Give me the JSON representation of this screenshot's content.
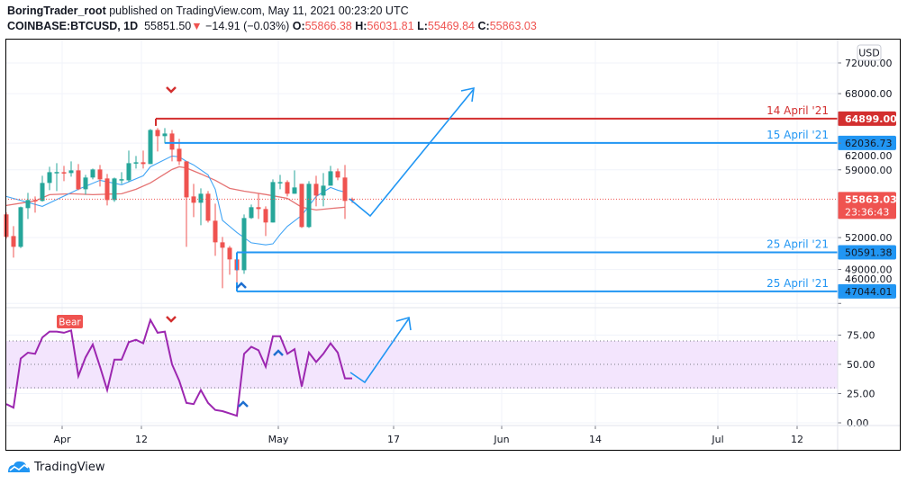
{
  "header": {
    "author": "BoringTrader_root",
    "published_text": "published on TradingView.com, May 11, 2021 00:23:20 UTC",
    "symbol": "COINBASE:BTCUSD, 1D",
    "last": "55851.50",
    "change": "−14.91 (−0.03%)",
    "o_label": "O:",
    "o": "55866.38",
    "h_label": "H:",
    "h": "56031.81",
    "l_label": "L:",
    "l": "55469.84",
    "c_label": "C:",
    "c": "55863.03"
  },
  "footer": {
    "brand": "TradingView"
  },
  "colors": {
    "up": "#26a69a",
    "down": "#ef5350",
    "blue": "#2196f3",
    "red_line": "#d32f2f",
    "rsi": "#9c27b0",
    "rsi_band": "#f3e5fd",
    "ma_fast": "#42a5f5",
    "ma_slow": "#e57373"
  },
  "chart_data": {
    "type": "candlestick",
    "currency": "USD",
    "scale": "log",
    "price_ticks": [
      "72000.00",
      "68000.00",
      "62000.00",
      "59000.00",
      "52000.00",
      "49000.00",
      "46000.00"
    ],
    "price_tick_values": [
      72000,
      68000,
      62000,
      59000,
      52000,
      49000,
      46000
    ],
    "time_labels": [
      "Apr",
      "12",
      "May",
      "17",
      "Jun",
      "14",
      "Jul",
      "12"
    ],
    "candles_ohlc": [
      [
        54300,
        54500,
        51900,
        52070
      ],
      [
        52150,
        53120,
        50095,
        51115
      ],
      [
        51115,
        55100,
        51000,
        55030
      ],
      [
        54935,
        56525,
        53840,
        55770
      ],
      [
        55770,
        56145,
        54480,
        55680
      ],
      [
        55680,
        58350,
        55600,
        57575
      ],
      [
        57575,
        59340,
        56805,
        58740
      ],
      [
        58740,
        59735,
        56715,
        58760
      ],
      [
        58740,
        59440,
        57765,
        58645
      ],
      [
        58645,
        59935,
        58255,
        58940
      ],
      [
        58940,
        59640,
        56805,
        56900
      ],
      [
        56900,
        58450,
        56335,
        58160
      ],
      [
        58160,
        59140,
        57960,
        59040
      ],
      [
        59040,
        59540,
        57190,
        57960
      ],
      [
        58060,
        58550,
        55215,
        55770
      ],
      [
        55770,
        58160,
        55585,
        58060
      ],
      [
        57960,
        58740,
        57480,
        57980
      ],
      [
        57860,
        61160,
        57670,
        59735
      ],
      [
        59735,
        60540,
        59140,
        59835
      ],
      [
        59835,
        61160,
        59140,
        59640
      ],
      [
        59640,
        63660,
        59640,
        63550
      ],
      [
        63550,
        63770,
        61050,
        62820
      ],
      [
        62820,
        63770,
        61980,
        63130
      ],
      [
        63130,
        63550,
        59935,
        61260
      ],
      [
        61360,
        62500,
        59540,
        59935
      ],
      [
        59935,
        59935,
        51115,
        56050
      ],
      [
        56145,
        57480,
        54020,
        55490
      ],
      [
        55490,
        57000,
        53210,
        56430
      ],
      [
        56430,
        56715,
        53485,
        53660
      ],
      [
        53660,
        55400,
        50265,
        51545
      ],
      [
        51545,
        52065,
        47320,
        51030
      ],
      [
        51030,
        51200,
        48530,
        49930
      ],
      [
        49930,
        49930,
        47640,
        48935
      ],
      [
        48935,
        54295,
        48610,
        53930
      ],
      [
        53930,
        55305,
        53840,
        55030
      ],
      [
        55030,
        56430,
        53840,
        54845
      ],
      [
        54845,
        55120,
        52150,
        53485
      ],
      [
        53485,
        57960,
        53485,
        57670
      ],
      [
        57575,
        58450,
        56900,
        57670
      ],
      [
        57670,
        57860,
        56145,
        56430
      ],
      [
        56430,
        58940,
        56430,
        57095
      ],
      [
        57480,
        57480,
        52945,
        53035
      ],
      [
        53035,
        57765,
        52945,
        57480
      ],
      [
        57480,
        58350,
        55120,
        56240
      ],
      [
        56240,
        58645,
        55120,
        57285
      ],
      [
        57285,
        59440,
        57285,
        58840
      ],
      [
        58840,
        59140,
        57860,
        58160
      ],
      [
        58160,
        59540,
        53840,
        55680
      ],
      [
        55866.38,
        56031.81,
        55469.84,
        55863.03
      ]
    ],
    "ma_fast": [
      [
        0,
        56145
      ],
      [
        5,
        55120
      ],
      [
        10,
        56900
      ],
      [
        13,
        57860
      ],
      [
        16,
        57380
      ],
      [
        19,
        58350
      ],
      [
        20,
        59340
      ],
      [
        23,
        60540
      ],
      [
        24,
        60440
      ],
      [
        25,
        59935
      ],
      [
        26,
        59540
      ],
      [
        28,
        58450
      ],
      [
        29,
        56900
      ],
      [
        30,
        53700
      ],
      [
        32,
        52500
      ],
      [
        34,
        51500
      ],
      [
        36,
        51300
      ],
      [
        37,
        51400
      ],
      [
        38,
        52300
      ],
      [
        39,
        53100
      ],
      [
        41,
        54200
      ],
      [
        43,
        56145
      ],
      [
        45,
        57095
      ],
      [
        46,
        56800
      ],
      [
        47,
        56600
      ]
    ],
    "ma_slow": [
      [
        0,
        55215
      ],
      [
        4,
        55680
      ],
      [
        6,
        56335
      ],
      [
        9,
        56430
      ],
      [
        12,
        56335
      ],
      [
        16,
        56430
      ],
      [
        18,
        56900
      ],
      [
        20,
        57580
      ],
      [
        22,
        58550
      ],
      [
        23,
        59040
      ],
      [
        24,
        59340
      ],
      [
        25,
        59200
      ],
      [
        27,
        58550
      ],
      [
        29,
        57860
      ],
      [
        31,
        57000
      ],
      [
        33,
        56700
      ],
      [
        36,
        56350
      ],
      [
        39,
        55950
      ],
      [
        41,
        55030
      ],
      [
        43,
        54750
      ],
      [
        45,
        54900
      ],
      [
        47,
        55030
      ]
    ],
    "last_price": {
      "label": "55863.03",
      "countdown": "23:36:43",
      "value": 55863.03
    },
    "levels": [
      {
        "label": "14 April '21",
        "price_label": "64899.00",
        "value": 64899.0,
        "color": "#d32f2f",
        "start_index": 21
      },
      {
        "label": "15 April '21",
        "price_label": "62036.73",
        "value": 62036.73,
        "color": "#2196f3",
        "start_index": 22
      },
      {
        "label": "25 April '21",
        "price_label": "50591.38",
        "value": 50591.38,
        "color": "#2196f3",
        "start_index": 32
      },
      {
        "label": "25 April '21",
        "price_label": "47044.01",
        "value": 47044.01,
        "color": "#2196f3",
        "start_index": 32
      }
    ],
    "rsi": {
      "ticks": [
        "75.00",
        "50.00",
        "25.00",
        "0.00"
      ],
      "tick_values": [
        75,
        50,
        25,
        0
      ],
      "band": [
        30,
        70
      ],
      "values": [
        16,
        13,
        55,
        60,
        59,
        73,
        78,
        78,
        77,
        79,
        40,
        56,
        67,
        48,
        28,
        54,
        54,
        69,
        71,
        68,
        88,
        77,
        78,
        50,
        36,
        17,
        16,
        28,
        17,
        11,
        10,
        8,
        6,
        59,
        65,
        62,
        48,
        74,
        74,
        59,
        63,
        31,
        60,
        52,
        59,
        68,
        60,
        38,
        38
      ],
      "bear_label": "Bear"
    }
  }
}
